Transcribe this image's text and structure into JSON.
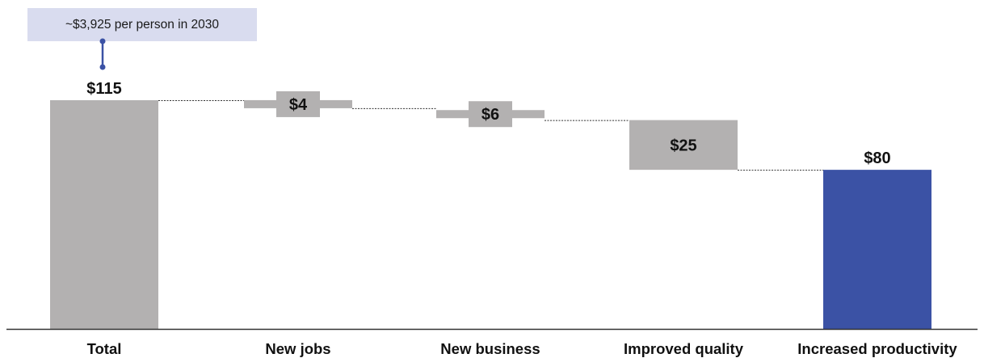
{
  "callout": {
    "text": "~$3,925 per person in 2030"
  },
  "colors": {
    "gray_bar": "#b3b1b1",
    "highlight_bar": "#3b52a5",
    "callout_bg": "#d9dcef",
    "callout_connector": "#3b52a5",
    "axis": "#333333",
    "connector_line": "#333333"
  },
  "chart_data": {
    "type": "bar",
    "subtype": "waterfall",
    "categories": [
      "Total",
      "New jobs",
      "New business",
      "Improved quality",
      "Increased productivity"
    ],
    "values": [
      115,
      4,
      6,
      25,
      80
    ],
    "data_labels": [
      "$115",
      "$4",
      "$6",
      "$25",
      "$80"
    ],
    "bar_kinds": [
      "total",
      "decrease",
      "decrease",
      "decrease",
      "result"
    ],
    "title": "",
    "xlabel": "",
    "ylabel": "",
    "ylim": [
      0,
      115
    ],
    "grid": false,
    "legend": "none"
  }
}
